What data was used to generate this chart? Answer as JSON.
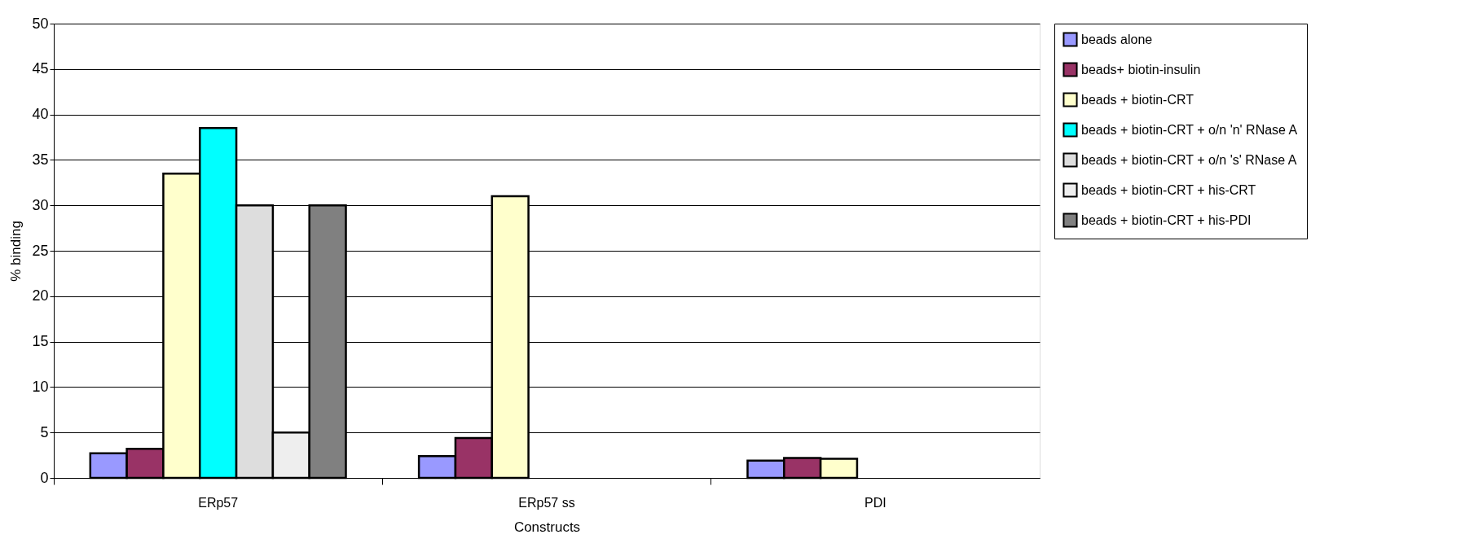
{
  "chart_data": {
    "type": "bar",
    "xlabel": "Constructs",
    "ylabel": "% binding",
    "categories": [
      "ERp57",
      "ERp57 ss",
      "PDI"
    ],
    "series": [
      {
        "name": "beads alone",
        "color": "#9999ff",
        "values": [
          2.7,
          2.4,
          1.9
        ]
      },
      {
        "name": "beads+ biotin-insulin",
        "color": "#993366",
        "values": [
          3.2,
          4.4,
          2.2
        ]
      },
      {
        "name": "beads + biotin-CRT",
        "color": "#ffffcc",
        "values": [
          33.5,
          31,
          2.1
        ]
      },
      {
        "name": "beads + biotin-CRT + o/n 'n' RNase A",
        "color": "#00ffff",
        "values": [
          38.5,
          null,
          null
        ]
      },
      {
        "name": "beads + biotin-CRT + o/n 's' RNase A",
        "color": "#dddddd",
        "values": [
          30,
          null,
          null
        ]
      },
      {
        "name": "beads + biotin-CRT + his-CRT",
        "color": "#eeeeee",
        "values": [
          5,
          null,
          null
        ]
      },
      {
        "name": "beads + biotin-CRT + his-PDI",
        "color": "#808080",
        "values": [
          30,
          null,
          null
        ]
      }
    ],
    "ylim": [
      0,
      50
    ],
    "yticks": [
      0,
      5,
      10,
      15,
      20,
      25,
      30,
      35,
      40,
      45,
      50
    ],
    "grid": "y",
    "legend": "right"
  }
}
